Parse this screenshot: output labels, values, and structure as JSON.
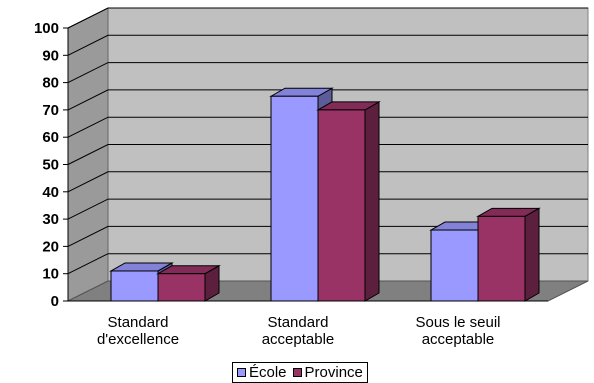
{
  "chart_data": {
    "type": "bar",
    "categories": [
      [
        "Standard",
        "d'excellence"
      ],
      [
        "Standard",
        "acceptable"
      ],
      [
        "Sous le seuil",
        "acceptable"
      ]
    ],
    "series": [
      {
        "name": "École",
        "values": [
          11,
          75,
          26
        ],
        "color": "#9999ff"
      },
      {
        "name": "Province",
        "values": [
          10,
          70,
          31
        ],
        "color": "#993366"
      }
    ],
    "yticks": [
      0,
      10,
      20,
      30,
      40,
      50,
      60,
      70,
      80,
      90,
      100
    ],
    "ylim": [
      0,
      100
    ],
    "grid": true,
    "legend": "bottom",
    "title": "",
    "xlabel": "",
    "ylabel": ""
  }
}
